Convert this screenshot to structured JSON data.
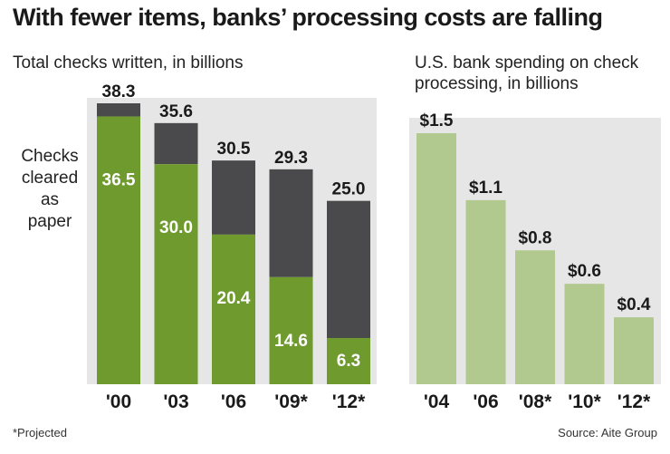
{
  "title": "With fewer items, banks’ processing costs are falling",
  "left_subtitle": "Total checks written, in billions",
  "right_subtitle_line1": "U.S. bank spending on check",
  "right_subtitle_line2": "processing, in billions",
  "side_label": [
    "Checks",
    "cleared",
    "as",
    "paper"
  ],
  "footnote": "*Projected",
  "source": "Source: Aite Group",
  "colors": {
    "background": "#ffffff",
    "panel_bg": "#e6e6e6",
    "paper_green": "#6e9a2e",
    "other_gray": "#4a4a4c",
    "spending_green": "#b1c98f"
  },
  "chart_data": [
    {
      "type": "bar",
      "stacked": true,
      "title": "Total checks written, in billions",
      "categories": [
        "'00",
        "'03",
        "'06",
        "'09*",
        "'12*"
      ],
      "totals": [
        38.3,
        35.6,
        30.5,
        29.3,
        25.0
      ],
      "total_labels": [
        "38.3",
        "35.6",
        "30.5",
        "29.3",
        "25.0"
      ],
      "series": [
        {
          "name": "Checks cleared as paper",
          "values": [
            36.5,
            30.0,
            20.4,
            14.6,
            6.3
          ],
          "labels": [
            "36.5",
            "30.0",
            "20.4",
            "14.6",
            "6.3"
          ]
        }
      ],
      "ylim": [
        0,
        38.3
      ]
    },
    {
      "type": "bar",
      "title": "U.S. bank spending on check processing, in billions",
      "categories": [
        "'04",
        "'06",
        "'08*",
        "'10*",
        "'12*"
      ],
      "values": [
        1.5,
        1.1,
        0.8,
        0.6,
        0.4
      ],
      "labels": [
        "$1.5",
        "$1.1",
        "$0.8",
        "$0.6",
        "$0.4"
      ],
      "ylim": [
        0,
        1.5
      ]
    }
  ]
}
